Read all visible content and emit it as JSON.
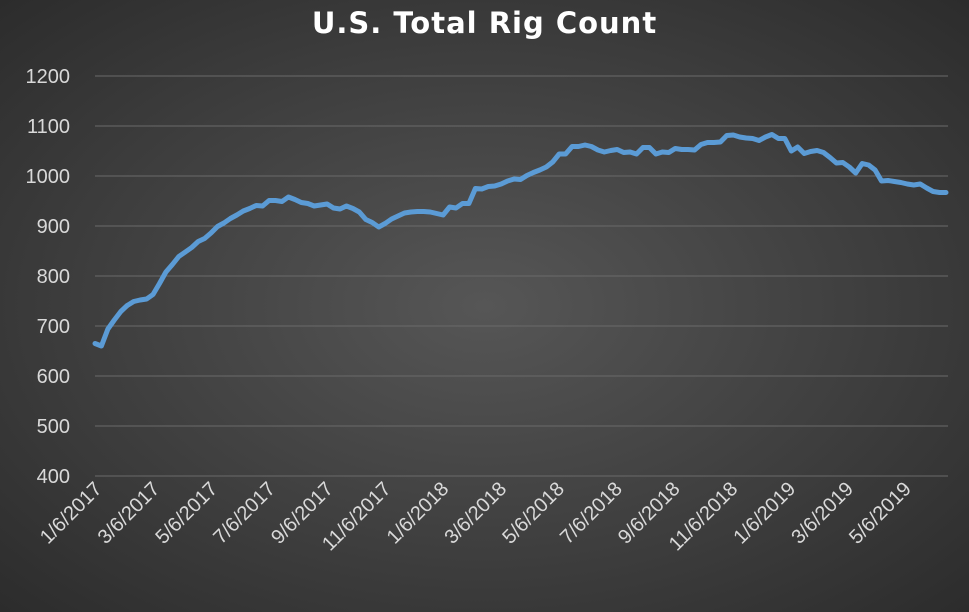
{
  "chart_data": {
    "type": "line",
    "title": "U.S. Total Rig Count",
    "xlabel": "",
    "ylabel": "",
    "ylim": [
      400,
      1200
    ],
    "yticks": [
      "1200",
      "1100",
      "1000",
      "900",
      "800",
      "700",
      "600",
      "500",
      "400"
    ],
    "xtick_labels": [
      "1/6/2017",
      "3/6/2017",
      "5/6/2017",
      "7/6/2017",
      "9/6/2017",
      "11/6/2017",
      "1/6/2018",
      "3/6/2018",
      "5/6/2018",
      "7/6/2018",
      "9/6/2018",
      "11/6/2018",
      "1/6/2019",
      "3/6/2019",
      "5/6/2019"
    ],
    "grid": true,
    "legend": "none",
    "line_color": "#5b9bd5",
    "series": [
      {
        "values": [
          665,
          660,
          694,
          712,
          729,
          741,
          749,
          752,
          754,
          763,
          785,
          808,
          823,
          839,
          848,
          857,
          869,
          875,
          886,
          899,
          906,
          915,
          922,
          930,
          935,
          941,
          940,
          951,
          951,
          949,
          958,
          953,
          947,
          945,
          940,
          942,
          944,
          936,
          934,
          940,
          935,
          928,
          913,
          907,
          898,
          905,
          914,
          920,
          926,
          928,
          929,
          929,
          928,
          925,
          922,
          938,
          936,
          945,
          945,
          975,
          974,
          979,
          980,
          984,
          990,
          994,
          993,
          1001,
          1007,
          1012,
          1018,
          1028,
          1044,
          1044,
          1059,
          1059,
          1062,
          1059,
          1052,
          1048,
          1051,
          1053,
          1047,
          1048,
          1044,
          1057,
          1057,
          1044,
          1048,
          1047,
          1055,
          1053,
          1053,
          1052,
          1063,
          1067,
          1067,
          1068,
          1081,
          1082,
          1078,
          1076,
          1075,
          1071,
          1078,
          1083,
          1075,
          1075,
          1050,
          1058,
          1045,
          1049,
          1051,
          1047,
          1037,
          1026,
          1027,
          1018,
          1006,
          1025,
          1022,
          1012,
          990,
          991,
          989,
          987,
          984,
          982,
          984,
          976,
          969,
          967,
          967
        ]
      }
    ]
  }
}
